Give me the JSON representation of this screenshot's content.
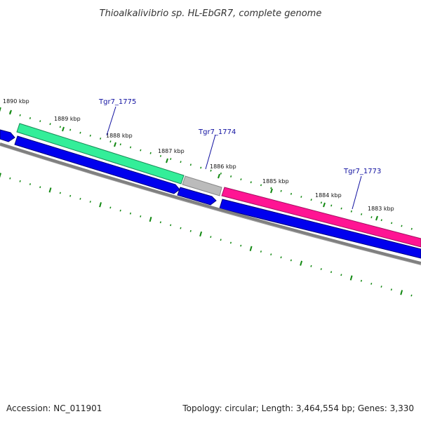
{
  "title": "Thioalkalivibrio sp. HL-EbGR7, complete genome",
  "footer": {
    "accession": "Accession: NC_011901",
    "summary": "Topology: circular; Length: 3,464,554 bp; Genes: 3,330"
  },
  "tick_labels": [
    "1890 kbp",
    "1889 kbp",
    "1888 kbp",
    "1887 kbp",
    "1886 kbp",
    "1885 kbp",
    "1884 kbp",
    "1883 kbp"
  ],
  "genes": [
    {
      "name": "Tgr7_1775",
      "color": "#33ee99"
    },
    {
      "name": "Tgr7_1774",
      "color": "#bbbbbb"
    },
    {
      "name": "Tgr7_1773",
      "color": "#ff1493"
    }
  ],
  "colors": {
    "cds_strand": "#0000ee",
    "backbone": "#808080",
    "ticks": "#118811"
  }
}
